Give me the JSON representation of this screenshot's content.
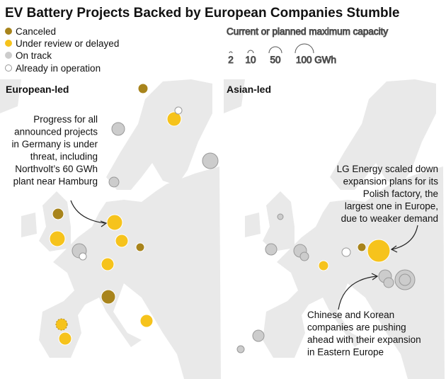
{
  "header": {
    "title": "EV Battery Projects Backed by European Companies Stumble"
  },
  "legend": {
    "status": [
      "Canceled",
      "Under review or delayed",
      "On track",
      "Already in operation"
    ],
    "size_title": "Current or planned maximum capacity",
    "size_labels": [
      "2",
      "10",
      "50",
      "100 GWh"
    ]
  },
  "panels": [
    {
      "title": "European-led",
      "annotations": [
        [
          "Progress for all",
          "announced projects",
          "in Germany is under",
          "threat, including",
          "Northvolt’s 60 GWh",
          "plant near Hamburg"
        ]
      ]
    },
    {
      "title": "Asian-led",
      "annotations": [
        [
          "LG Energy scaled down",
          "expansion plans for its",
          "Polish factory, the",
          "largest one in Europe,",
          "due to weaker demand"
        ],
        [
          "Chinese and Korean",
          "companies are pushing",
          "ahead with their expansion",
          "in Eastern Europe"
        ]
      ]
    }
  ]
}
